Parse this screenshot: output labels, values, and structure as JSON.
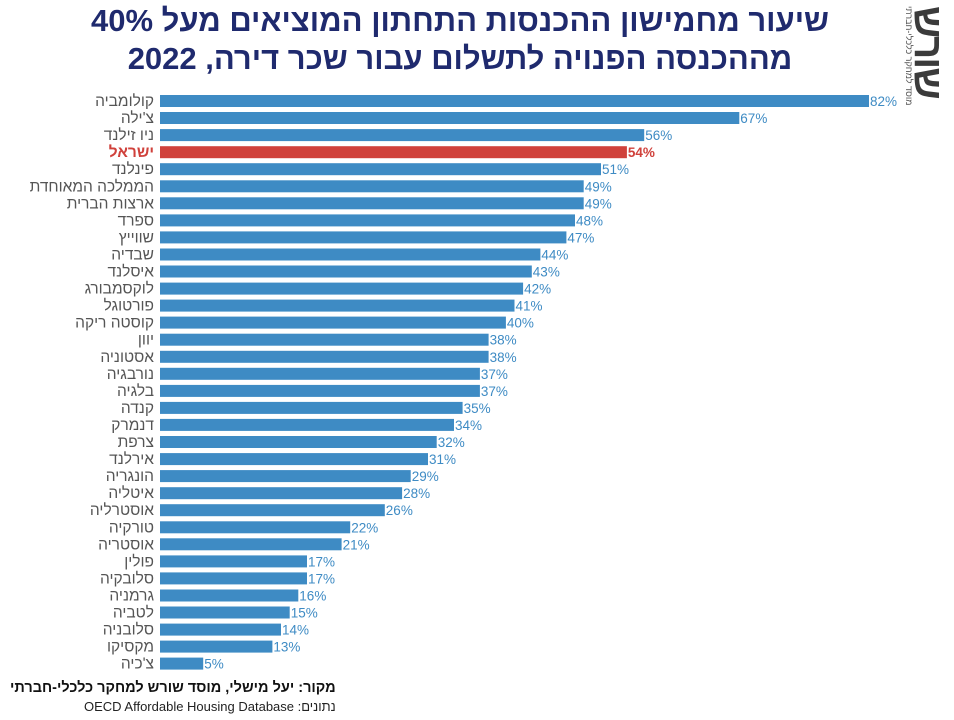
{
  "title": {
    "line1": "שיעור מחמישון ההכנסות התחתון המוציאים מעל 40%",
    "line2": "מההכנסה הפנויה לתשלום עבור שכר דירה, 2022"
  },
  "logo": {
    "mark": "שורש",
    "subtitle": "מוסד למחקר כלכלי-חברתי"
  },
  "footer": {
    "source": "מקור: יעל מישלי, מוסד שורש למחקר כלכלי-חברתי",
    "data_label": "נתונים:",
    "data_source": "OECD Affordable Housing Database"
  },
  "colors": {
    "bar": "#3e8bc4",
    "highlight": "#d0413b",
    "title": "#1f2a6e"
  },
  "chart_data": {
    "type": "bar",
    "orientation": "horizontal",
    "value_suffix": "%",
    "highlight": "ישראל",
    "xlim": [
      0,
      82
    ],
    "grid": false,
    "categories": [
      "קולומביה",
      "צ'ילה",
      "ניו זילנד",
      "ישראל",
      "פינלנד",
      "הממלכה המאוחדת",
      "ארצות הברית",
      "ספרד",
      "שווייץ",
      "שבדיה",
      "איסלנד",
      "לוקסמבורג",
      "פורטוגל",
      "קוסטה ריקה",
      "יוון",
      "אסטוניה",
      "נורבגיה",
      "בלגיה",
      "קנדה",
      "דנמרק",
      "צרפת",
      "אירלנד",
      "הונגריה",
      "איטליה",
      "אוסטרליה",
      "טורקיה",
      "אוסטריה",
      "פולין",
      "סלובקיה",
      "גרמניה",
      "לטביה",
      "סלובניה",
      "מקסיקו",
      "צ'כיה"
    ],
    "values": [
      82,
      67,
      56,
      54,
      51,
      49,
      49,
      48,
      47,
      44,
      43,
      42,
      41,
      40,
      38,
      38,
      37,
      37,
      35,
      34,
      32,
      31,
      29,
      28,
      26,
      22,
      21,
      17,
      17,
      16,
      15,
      14,
      13,
      5
    ]
  }
}
